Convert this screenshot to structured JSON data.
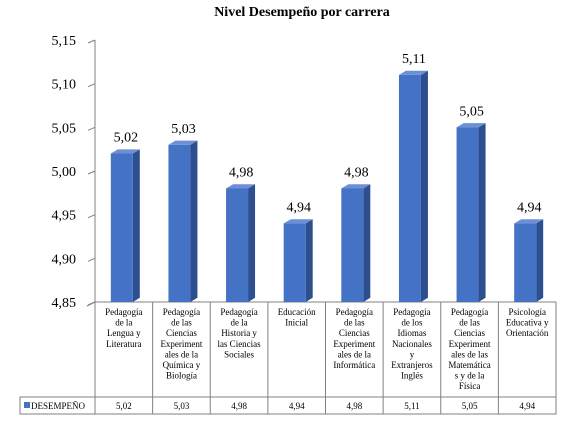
{
  "chart_data": {
    "type": "bar",
    "title": "Nivel Desempeño por carrera",
    "categories": [
      "Pedagogía de la Lengua y Literatura",
      "Pedagogía de las Ciencias Experimentales de la Química y Biología",
      "Pedagogía de la Historia y las Ciencias Sociales",
      "Educación Inicial",
      "Pedagogía de las Ciencias Experimentales de la Informática",
      "Pedagogía de los Idiomas Nacionales y Extranjeros Inglés",
      "Pedagogía de las Ciencias Experimentales de las Matemáticas y de la Física",
      "Psicología Educativa y Orientación"
    ],
    "category_label_lines": [
      [
        "Pedagogía",
        "de la",
        "Lengua y",
        "Literatura"
      ],
      [
        "Pedagogía",
        "de las",
        "Ciencias",
        "Experiment",
        "ales de la",
        "Química y",
        "Biología"
      ],
      [
        "Pedagogía",
        "de la",
        "Historia y",
        "las Ciencias",
        "Sociales"
      ],
      [
        "Educación",
        "Inicial"
      ],
      [
        "Pedagogía",
        "de las",
        "Ciencias",
        "Experiment",
        "ales de la",
        "Informática"
      ],
      [
        "Pedagogía",
        "de los",
        "Idiomas",
        "Nacionales",
        "y",
        "Extranjeros",
        "Inglés"
      ],
      [
        "Pedagogía",
        "de las",
        "Ciencias",
        "Experiment",
        "ales de las",
        "Matemática",
        "s y de la",
        "Física"
      ],
      [
        "Psicología",
        "Educativa y",
        "Orientación"
      ]
    ],
    "series": [
      {
        "name": "DESEMPEÑO",
        "values": [
          5.02,
          5.03,
          4.98,
          4.94,
          4.98,
          5.11,
          5.05,
          4.94
        ],
        "value_labels": [
          "5,02",
          "5,03",
          "4,98",
          "4,94",
          "4,98",
          "5,11",
          "5,05",
          "4,94"
        ]
      }
    ],
    "yticks": [
      "4,85",
      "4,90",
      "4,95",
      "5,00",
      "5,05",
      "5,10",
      "5,15"
    ],
    "ylim": [
      4.85,
      5.15
    ],
    "grid": false,
    "legend": "data-table",
    "colors": {
      "bar_front": "#4472C4",
      "bar_side": "#2E4F8F",
      "bar_top": "#6C8FD6",
      "legend_key": "#4472C4"
    }
  }
}
